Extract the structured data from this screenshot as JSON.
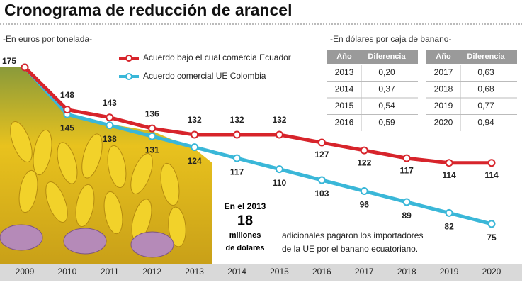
{
  "chart_data": {
    "type": "line",
    "title": "Cronograma de reducción de arancel",
    "subtitle": "-En euros por tonelada-",
    "categories": [
      "2009",
      "2010",
      "2011",
      "2012",
      "2013",
      "2014",
      "2015",
      "2016",
      "2017",
      "2018",
      "2019",
      "2020"
    ],
    "series": [
      {
        "name": "Acuerdo bajo el cual comercia Ecuador",
        "color": "#d7242b",
        "values": [
          175,
          148,
          143,
          136,
          132,
          132,
          132,
          127,
          122,
          117,
          114,
          114
        ]
      },
      {
        "name": "Acuerdo comercial UE Colombia",
        "color": "#3ab7d8",
        "values": [
          175,
          145,
          138,
          131,
          124,
          117,
          110,
          103,
          96,
          89,
          82,
          75
        ]
      }
    ],
    "ylim": [
      60,
      180
    ]
  },
  "table": {
    "title": "-En dólares por caja de banano-",
    "header": [
      "Año",
      "Diferencia"
    ],
    "rows": [
      [
        "2013",
        "0,20"
      ],
      [
        "2014",
        "0,37"
      ],
      [
        "2015",
        "0,54"
      ],
      [
        "2016",
        "0,59"
      ],
      [
        "2017",
        "0,63"
      ],
      [
        "2018",
        "0,68"
      ],
      [
        "2019",
        "0,77"
      ],
      [
        "2020",
        "0,94"
      ]
    ]
  },
  "annotation": {
    "year": "En el 2013",
    "amount": "18",
    "unit1": "millones",
    "unit2": "de dólares",
    "text1": "adicionales pagaron los importadores",
    "text2": "de la UE por el banano ecuatoriano."
  }
}
